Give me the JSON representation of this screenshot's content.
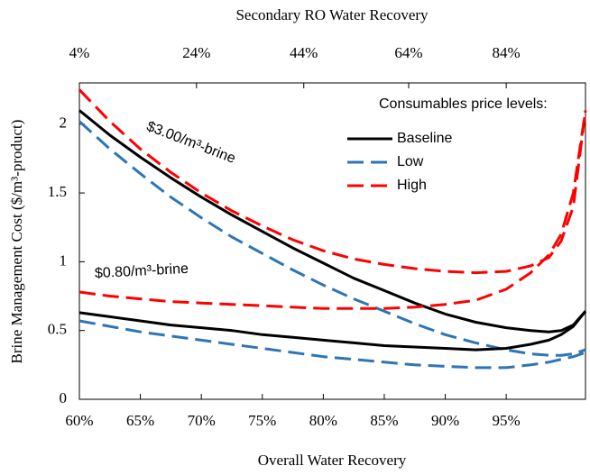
{
  "chart_data": {
    "type": "line",
    "title": "Secondary RO Water Recovery",
    "xlabel": "Overall Water Recovery",
    "ylabel": "Brine Management Cost ($/m³-product)",
    "legend_title": "Consumables price levels:",
    "xlim": [
      60,
      101.5
    ],
    "ylim": [
      0,
      2.3
    ],
    "xticks": [
      {
        "value": 60,
        "label": "60%"
      },
      {
        "value": 65,
        "label": "65%"
      },
      {
        "value": 70,
        "label": "70%"
      },
      {
        "value": 75,
        "label": "75%"
      },
      {
        "value": 80,
        "label": "80%"
      },
      {
        "value": 85,
        "label": "85%"
      },
      {
        "value": 90,
        "label": "90%"
      },
      {
        "value": 95,
        "label": "95%"
      }
    ],
    "x2ticks": [
      {
        "value": 4,
        "label": "4%",
        "x": 60
      },
      {
        "value": 24,
        "label": "24%",
        "x": 69.6
      },
      {
        "value": 44,
        "label": "44%",
        "x": 78.4
      },
      {
        "value": 64,
        "label": "64%",
        "x": 87
      },
      {
        "value": 84,
        "label": "84%",
        "x": 95
      }
    ],
    "yticks": [
      0,
      0.5,
      1,
      1.5,
      2
    ],
    "x": [
      60,
      62.5,
      65,
      67.5,
      70,
      72.5,
      75,
      77.5,
      80,
      82.5,
      85,
      87.5,
      90,
      92.5,
      95,
      97,
      98.5,
      99.5,
      100.5,
      101.5
    ],
    "series": [
      {
        "name": "Baseline",
        "color": "#000000",
        "dashed": false
      },
      {
        "name": "Low",
        "color": "#2e75b6",
        "dashed": true
      },
      {
        "name": "High",
        "color": "#ff0000",
        "dashed": true
      }
    ],
    "price_levels": [
      {
        "label": "$3.00/m³-brine",
        "series": [
          {
            "values": [
              2.1,
              1.92,
              1.76,
              1.61,
              1.47,
              1.34,
              1.22,
              1.1,
              0.99,
              0.88,
              0.79,
              0.7,
              0.62,
              0.56,
              0.52,
              0.5,
              0.49,
              0.5,
              0.54,
              0.64
            ]
          },
          {
            "values": [
              2.02,
              1.82,
              1.64,
              1.47,
              1.32,
              1.18,
              1.06,
              0.94,
              0.83,
              0.73,
              0.64,
              0.55,
              0.47,
              0.41,
              0.36,
              0.33,
              0.32,
              0.32,
              0.33,
              0.36
            ]
          },
          {
            "values": [
              2.25,
              2.02,
              1.82,
              1.65,
              1.5,
              1.37,
              1.26,
              1.16,
              1.08,
              1.02,
              0.98,
              0.95,
              0.93,
              0.92,
              0.93,
              0.97,
              1.03,
              1.15,
              1.4,
              2.1
            ]
          }
        ]
      },
      {
        "label": "$0.80/m³-brine",
        "series": [
          {
            "values": [
              0.63,
              0.6,
              0.57,
              0.54,
              0.52,
              0.5,
              0.47,
              0.45,
              0.43,
              0.41,
              0.39,
              0.38,
              0.37,
              0.36,
              0.37,
              0.4,
              0.43,
              0.47,
              0.53,
              0.64
            ]
          },
          {
            "values": [
              0.57,
              0.53,
              0.49,
              0.46,
              0.43,
              0.4,
              0.37,
              0.34,
              0.31,
              0.29,
              0.27,
              0.25,
              0.24,
              0.23,
              0.23,
              0.25,
              0.27,
              0.29,
              0.31,
              0.34
            ]
          },
          {
            "values": [
              0.78,
              0.75,
              0.73,
              0.71,
              0.7,
              0.69,
              0.68,
              0.67,
              0.66,
              0.66,
              0.66,
              0.67,
              0.69,
              0.72,
              0.8,
              0.92,
              1.05,
              1.2,
              1.5,
              2.1
            ]
          }
        ]
      }
    ]
  }
}
